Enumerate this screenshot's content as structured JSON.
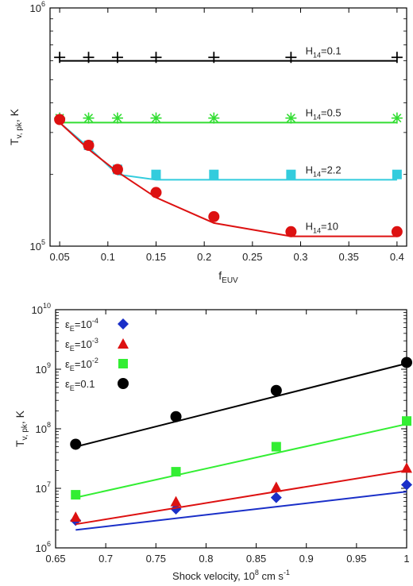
{
  "chart_data": [
    {
      "type": "scatter",
      "xlabel_main": "f",
      "xlabel_sub": "EUV",
      "ylabel_main": "T",
      "ylabel_sub": "v, pk",
      "ylabel_suffix": ", K",
      "xlim": [
        0.04,
        0.41
      ],
      "ylim_exp": [
        5,
        6
      ],
      "yscale": "log",
      "xticks": [
        0.05,
        0.1,
        0.15,
        0.2,
        0.25,
        0.3,
        0.35,
        0.4
      ],
      "xtick_labels": [
        "0.05",
        "0.1",
        "0.15",
        "0.2",
        "0.25",
        "0.3",
        "0.35",
        "0.4"
      ],
      "ytick_exps": [
        5,
        6
      ],
      "ytick_base": "10",
      "ytick_sups": [
        "5",
        "6"
      ],
      "series": [
        {
          "name_main": "H",
          "name_sub": "14",
          "name_suffix": "=0.1",
          "color": "#000000",
          "marker": "plus",
          "points_x": [
            0.05,
            0.08,
            0.11,
            0.15,
            0.21,
            0.29,
            0.4
          ],
          "points_y": [
            620000,
            620000,
            620000,
            620000,
            620000,
            620000,
            620000
          ],
          "line_x": [
            0.05,
            0.08,
            0.11,
            0.15,
            0.21,
            0.29,
            0.4
          ],
          "line_y": [
            600000,
            600000,
            600000,
            600000,
            600000,
            600000,
            600000
          ]
        },
        {
          "name_main": "H",
          "name_sub": "14",
          "name_suffix": "=0.5",
          "color": "#33dd33",
          "marker": "asterisk",
          "points_x": [
            0.05,
            0.08,
            0.11,
            0.15,
            0.21,
            0.29,
            0.4
          ],
          "points_y": [
            345000,
            345000,
            345000,
            345000,
            345000,
            345000,
            345000
          ],
          "line_x": [
            0.05,
            0.08,
            0.11,
            0.15,
            0.21,
            0.29,
            0.4
          ],
          "line_y": [
            330000,
            330000,
            330000,
            330000,
            330000,
            330000,
            330000
          ]
        },
        {
          "name_main": "H",
          "name_sub": "14",
          "name_suffix": "=2.2",
          "color": "#33ccdd",
          "marker": "square",
          "points_x": [
            0.08,
            0.11,
            0.15,
            0.21,
            0.29,
            0.4
          ],
          "points_y": [
            265000,
            210000,
            200000,
            200000,
            200000,
            200000
          ],
          "line_x": [
            0.05,
            0.08,
            0.11,
            0.15,
            0.21,
            0.29,
            0.4
          ],
          "line_y": [
            330000,
            260000,
            200000,
            190000,
            190000,
            190000,
            190000
          ]
        },
        {
          "name_main": "H",
          "name_sub": "14",
          "name_suffix": "=10",
          "color": "#dd1111",
          "marker": "circle",
          "points_x": [
            0.05,
            0.08,
            0.11,
            0.15,
            0.21,
            0.29,
            0.4
          ],
          "points_y": [
            340000,
            265000,
            210000,
            168000,
            133000,
            115000,
            115000
          ],
          "line_x": [
            0.05,
            0.08,
            0.11,
            0.15,
            0.21,
            0.29,
            0.4
          ],
          "line_y": [
            330000,
            255000,
            205000,
            160000,
            125000,
            110000,
            110000
          ]
        }
      ]
    },
    {
      "type": "scatter",
      "xlabel": "Shock velocity, 10",
      "xlabel_sup": "8",
      "xlabel_suffix": " cm s",
      "xlabel_sup2": "-1",
      "ylabel_main": "T",
      "ylabel_sub": "v, pk",
      "ylabel_suffix": ", K",
      "xlim": [
        0.65,
        1.0
      ],
      "ylim_exp": [
        6,
        10
      ],
      "yscale": "log",
      "xticks": [
        0.65,
        0.7,
        0.75,
        0.8,
        0.85,
        0.9,
        0.95,
        1.0
      ],
      "xtick_labels": [
        "0.65",
        "0.7",
        "0.75",
        "0.8",
        "0.85",
        "0.9",
        "0.95",
        "1"
      ],
      "ytick_exps": [
        6,
        7,
        8,
        9,
        10
      ],
      "ytick_base": "10",
      "ytick_sups": [
        "6",
        "7",
        "8",
        "9",
        "10"
      ],
      "legend_position": "top-left",
      "series": [
        {
          "name_main": "ε",
          "name_sub": "E",
          "name_suffix": "=10",
          "name_sup": "-4",
          "color": "#1a2fc8",
          "marker": "diamond",
          "points_x": [
            0.67,
            0.77,
            0.87,
            1.0
          ],
          "points_y": [
            2900000,
            4500000,
            7000000,
            11500000
          ],
          "line_x": [
            0.67,
            1.0
          ],
          "line_y": [
            2000000,
            8800000
          ]
        },
        {
          "name_main": "ε",
          "name_sub": "E",
          "name_suffix": "=10",
          "name_sup": "-3",
          "color": "#dd1111",
          "marker": "triangle",
          "points_x": [
            0.67,
            0.77,
            0.87,
            1.0
          ],
          "points_y": [
            3300000,
            6000000,
            10500000,
            22000000
          ],
          "line_x": [
            0.67,
            1.0
          ],
          "line_y": [
            2500000,
            20000000
          ]
        },
        {
          "name_main": "ε",
          "name_sub": "E",
          "name_suffix": "=10",
          "name_sup": "-2",
          "color": "#33ee33",
          "marker": "square",
          "points_x": [
            0.67,
            0.77,
            0.87,
            1.0
          ],
          "points_y": [
            7800000,
            19000000,
            50000000,
            135000000
          ],
          "line_x": [
            0.67,
            1.0
          ],
          "line_y": [
            7000000,
            120000000
          ]
        },
        {
          "name_main": "ε",
          "name_sub": "E",
          "name_suffix": "=0.1",
          "color": "#000000",
          "marker": "circle",
          "points_x": [
            0.67,
            0.77,
            0.87,
            1.0
          ],
          "points_y": [
            55000000,
            160000000,
            440000000,
            1300000000
          ],
          "line_x": [
            0.67,
            1.0
          ],
          "line_y": [
            50000000,
            1250000000
          ]
        }
      ]
    }
  ]
}
